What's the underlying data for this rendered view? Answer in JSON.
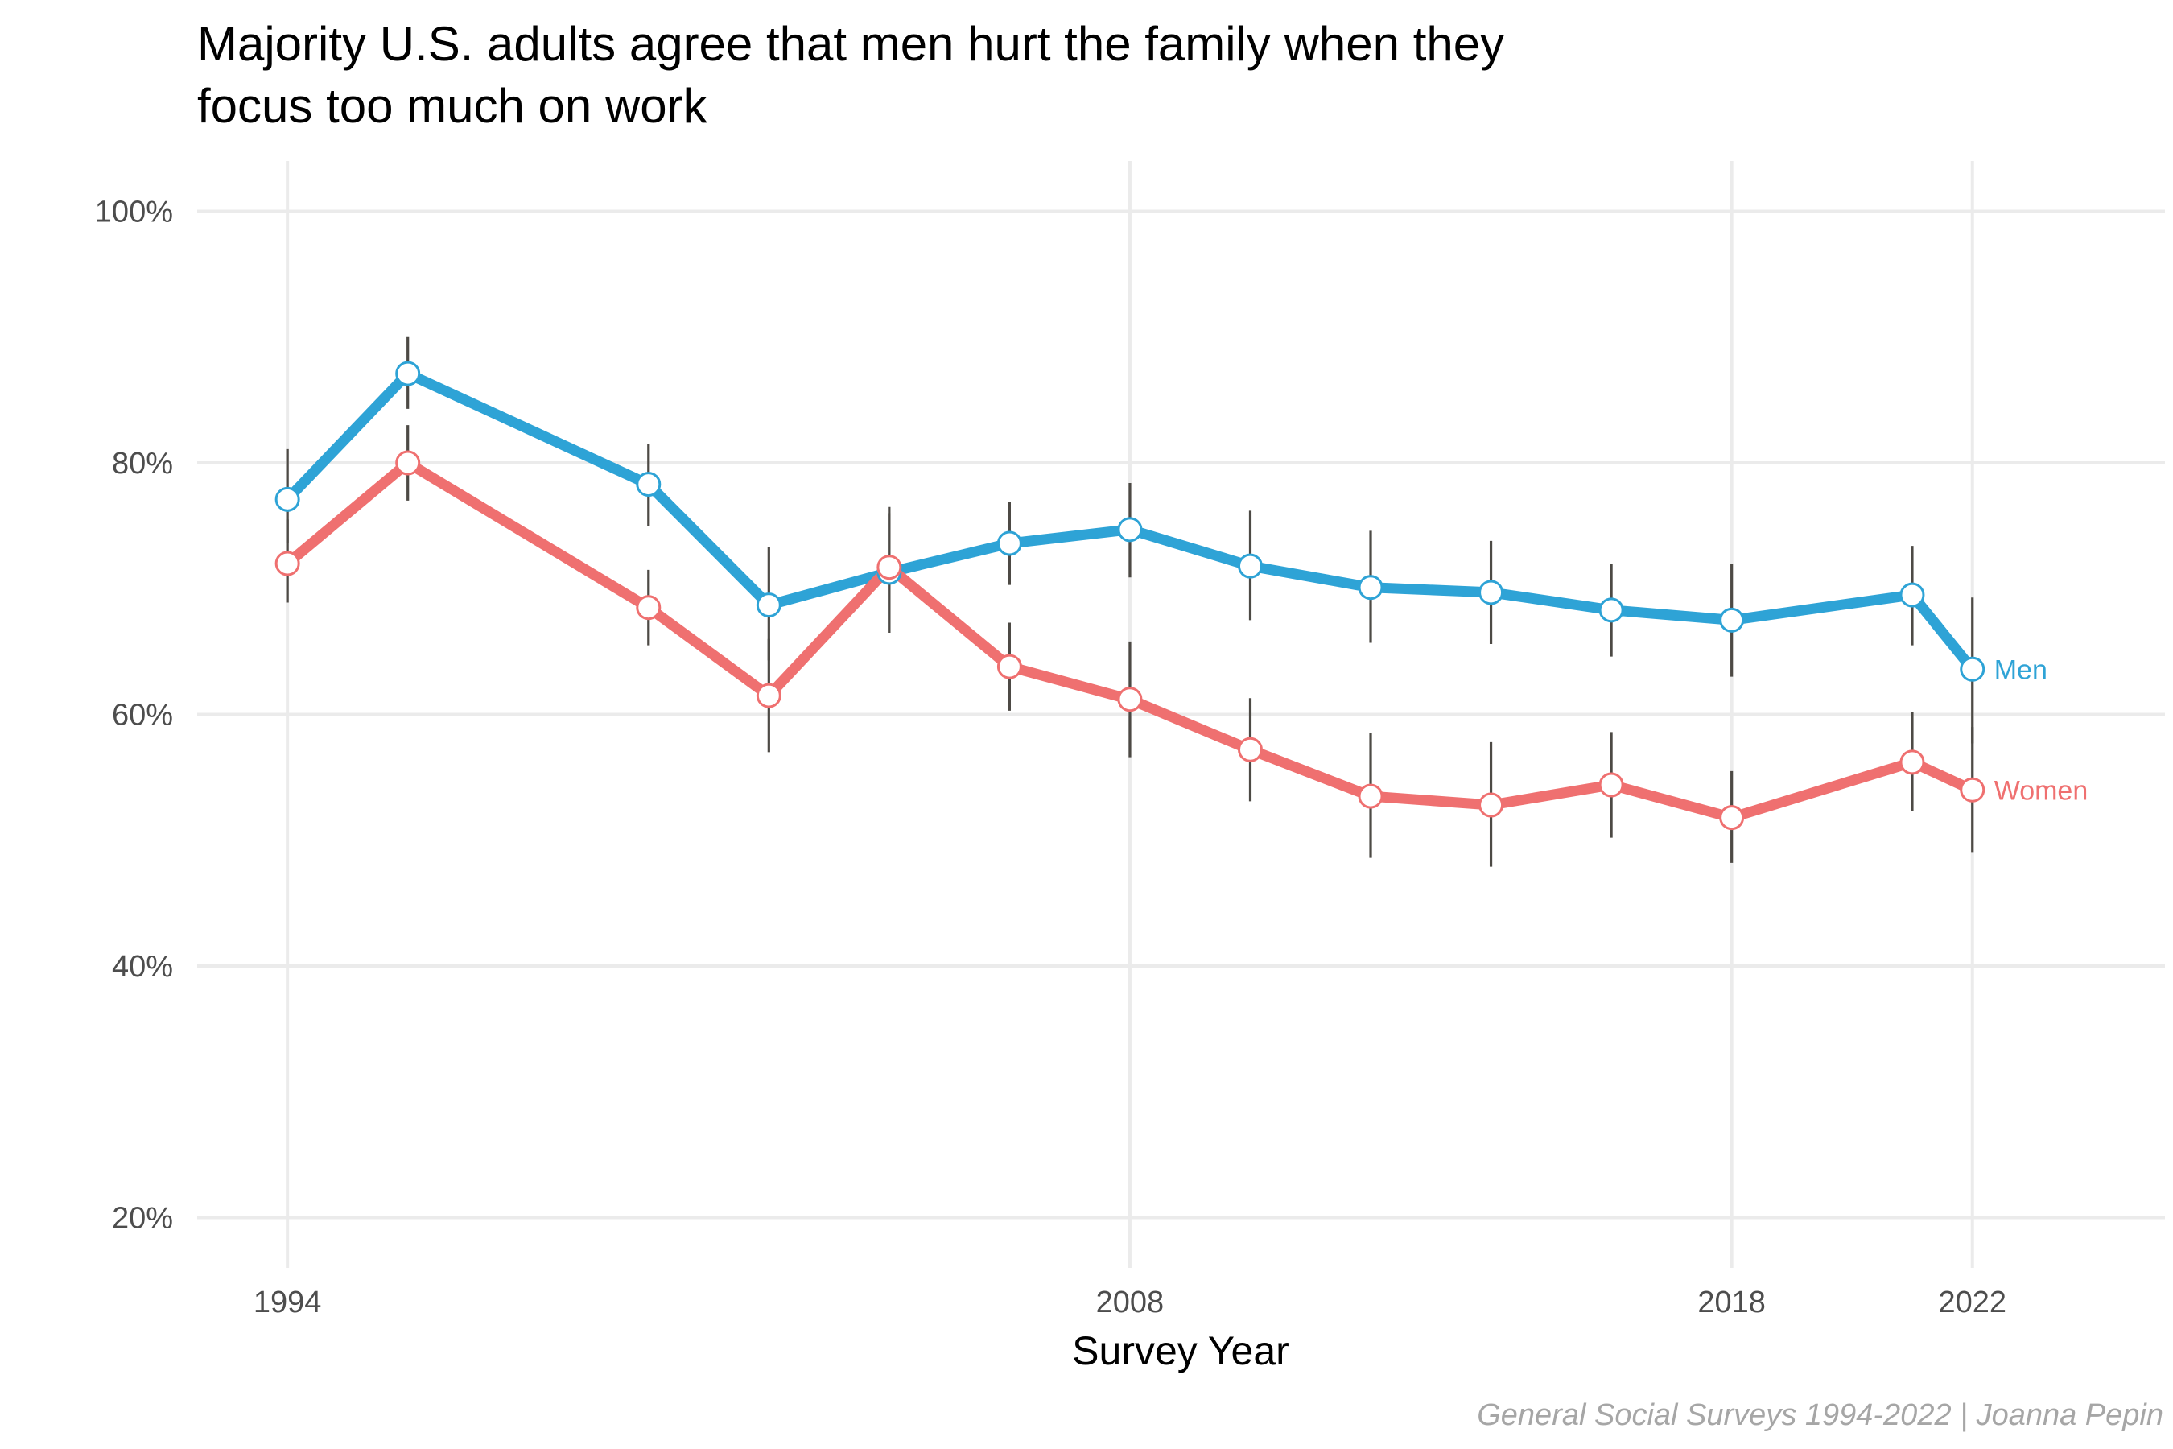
{
  "chart_data": {
    "type": "line",
    "title_lines": [
      "Majority U.S. adults agree that men hurt the family when they",
      "focus too much on work"
    ],
    "xlabel": "Survey Year",
    "ylabel": "",
    "caption": "General Social Surveys 1994-2022 | Joanna Pepin",
    "xlim": [
      1992.5,
      2025.2
    ],
    "ylim": [
      16,
      104
    ],
    "x_ticks": [
      1994,
      2008,
      2018,
      2022
    ],
    "x_tick_labels": [
      "1994",
      "2008",
      "2018",
      "2022"
    ],
    "y_ticks": [
      20,
      40,
      60,
      80,
      100
    ],
    "y_tick_labels": [
      "20%",
      "40%",
      "60%",
      "80%",
      "100%"
    ],
    "grid": true,
    "legend": "direct labels at line ends",
    "series": [
      {
        "name": "Men",
        "color": "#2ea3d6",
        "points": [
          {
            "x": 1994,
            "y": 77.1,
            "lo": 73.6,
            "hi": 81.1
          },
          {
            "x": 1996,
            "y": 87.1,
            "lo": 84.3,
            "hi": 90.0
          },
          {
            "x": 2000,
            "y": 78.3,
            "lo": 75.0,
            "hi": 81.5
          },
          {
            "x": 2002,
            "y": 68.7,
            "lo": 64.3,
            "hi": 73.3
          },
          {
            "x": 2004,
            "y": 71.3,
            "lo": 66.5,
            "hi": 76.0
          },
          {
            "x": 2006,
            "y": 73.6,
            "lo": 70.3,
            "hi": 76.9
          },
          {
            "x": 2008,
            "y": 74.7,
            "lo": 70.9,
            "hi": 78.4
          },
          {
            "x": 2010,
            "y": 71.8,
            "lo": 67.5,
            "hi": 76.2
          },
          {
            "x": 2012,
            "y": 70.1,
            "lo": 65.7,
            "hi": 74.6
          },
          {
            "x": 2014,
            "y": 69.7,
            "lo": 65.6,
            "hi": 73.8
          },
          {
            "x": 2016,
            "y": 68.3,
            "lo": 64.6,
            "hi": 72.0
          },
          {
            "x": 2018,
            "y": 67.5,
            "lo": 63.0,
            "hi": 72.0
          },
          {
            "x": 2021,
            "y": 69.5,
            "lo": 65.5,
            "hi": 73.4
          },
          {
            "x": 2022,
            "y": 63.6,
            "lo": 57.7,
            "hi": 69.3
          }
        ]
      },
      {
        "name": "Women",
        "color": "#ef7070",
        "points": [
          {
            "x": 1994,
            "y": 72.0,
            "lo": 68.9,
            "hi": 75.5
          },
          {
            "x": 1996,
            "y": 80.0,
            "lo": 77.0,
            "hi": 83.0
          },
          {
            "x": 2000,
            "y": 68.5,
            "lo": 65.5,
            "hi": 71.5
          },
          {
            "x": 2002,
            "y": 61.5,
            "lo": 57.0,
            "hi": 66.0
          },
          {
            "x": 2004,
            "y": 71.7,
            "lo": 66.5,
            "hi": 76.5
          },
          {
            "x": 2006,
            "y": 63.8,
            "lo": 60.3,
            "hi": 67.3
          },
          {
            "x": 2008,
            "y": 61.2,
            "lo": 56.6,
            "hi": 65.8
          },
          {
            "x": 2010,
            "y": 57.2,
            "lo": 53.1,
            "hi": 61.3
          },
          {
            "x": 2012,
            "y": 53.5,
            "lo": 48.6,
            "hi": 58.5
          },
          {
            "x": 2014,
            "y": 52.8,
            "lo": 47.9,
            "hi": 57.8
          },
          {
            "x": 2016,
            "y": 54.4,
            "lo": 50.2,
            "hi": 58.6
          },
          {
            "x": 2018,
            "y": 51.8,
            "lo": 48.2,
            "hi": 55.5
          },
          {
            "x": 2021,
            "y": 56.2,
            "lo": 52.3,
            "hi": 60.2
          },
          {
            "x": 2022,
            "y": 54.0,
            "lo": 49.0,
            "hi": 59.0
          }
        ]
      }
    ]
  }
}
